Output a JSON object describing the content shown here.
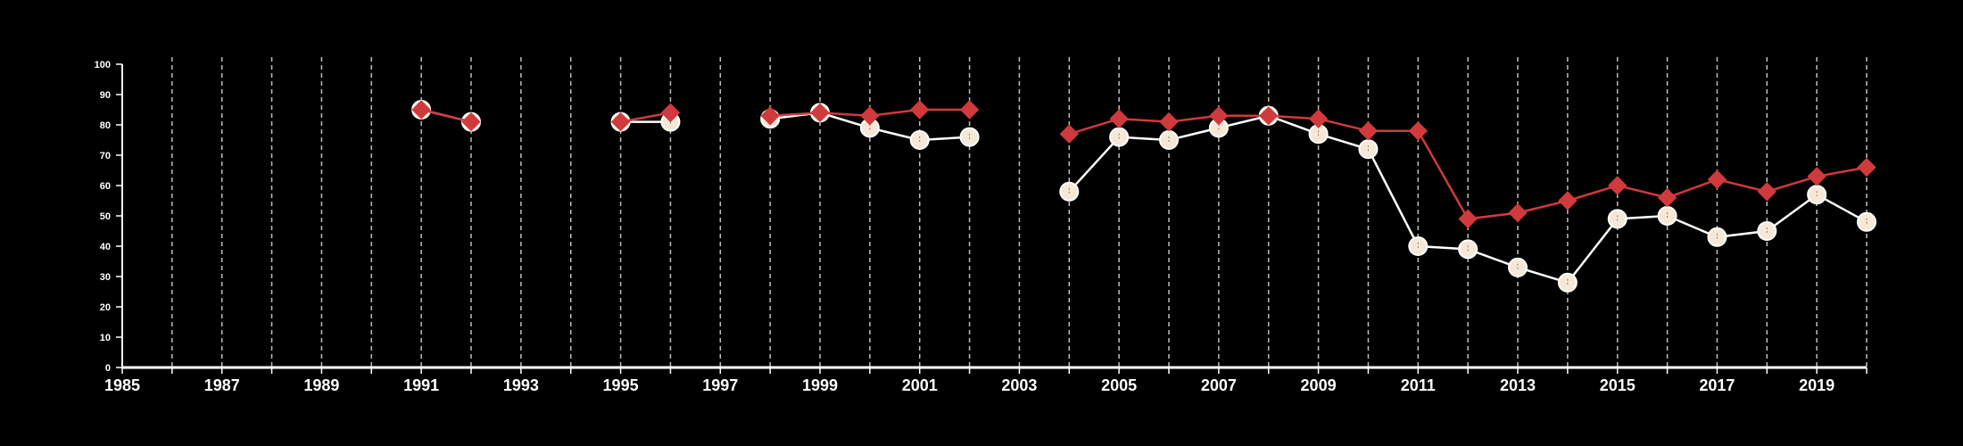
{
  "chart_data": {
    "type": "line",
    "title": "",
    "xlabel": "",
    "ylabel": "",
    "xlim": [
      1985,
      2020
    ],
    "ylim": [
      0,
      100
    ],
    "x_ticks": [
      1985,
      1987,
      1989,
      1991,
      1993,
      1995,
      1997,
      1999,
      2001,
      2003,
      2005,
      2007,
      2009,
      2011,
      2013,
      2015,
      2017,
      2019
    ],
    "y_ticks": [
      0,
      10,
      20,
      30,
      40,
      50,
      60,
      70,
      80,
      90,
      100
    ],
    "grid": "vertical dashed lines at every year",
    "background": "#000000",
    "series": [
      {
        "marker": "circle",
        "color": "#f6e8d6",
        "line_color": "#ffffff",
        "points": [
          [
            1991,
            85
          ],
          [
            1992,
            81
          ],
          null,
          [
            1995,
            81
          ],
          [
            1996,
            81
          ],
          null,
          [
            1998,
            82
          ],
          [
            1999,
            84
          ],
          [
            2000,
            79
          ],
          [
            2001,
            75
          ],
          [
            2002,
            76
          ],
          null,
          [
            2004,
            58
          ],
          [
            2005,
            76
          ],
          [
            2006,
            75
          ],
          [
            2007,
            79
          ],
          [
            2008,
            83
          ],
          [
            2009,
            77
          ],
          [
            2010,
            72
          ],
          [
            2011,
            40
          ],
          [
            2012,
            39
          ],
          [
            2013,
            33
          ],
          [
            2014,
            28
          ],
          [
            2015,
            49
          ],
          [
            2016,
            50
          ],
          [
            2017,
            43
          ],
          [
            2018,
            45
          ],
          [
            2019,
            57
          ],
          [
            2020,
            48
          ]
        ]
      },
      {
        "marker": "diamond",
        "color": "#d03a3c",
        "line_color": "#d03a3c",
        "points": [
          [
            1991,
            85
          ],
          [
            1992,
            81
          ],
          null,
          [
            1995,
            81
          ],
          [
            1996,
            84
          ],
          null,
          [
            1998,
            83
          ],
          [
            1999,
            84
          ],
          [
            2000,
            83
          ],
          [
            2001,
            85
          ],
          [
            2002,
            85
          ],
          null,
          [
            2004,
            77
          ],
          [
            2005,
            82
          ],
          [
            2006,
            81
          ],
          [
            2007,
            83
          ],
          [
            2008,
            83
          ],
          [
            2009,
            82
          ],
          [
            2010,
            78
          ],
          [
            2011,
            78
          ],
          [
            2012,
            49
          ],
          [
            2013,
            51
          ],
          [
            2014,
            55
          ],
          [
            2015,
            60
          ],
          [
            2016,
            56
          ],
          [
            2017,
            62
          ],
          [
            2018,
            58
          ],
          [
            2019,
            63
          ],
          [
            2020,
            66
          ]
        ]
      }
    ]
  }
}
